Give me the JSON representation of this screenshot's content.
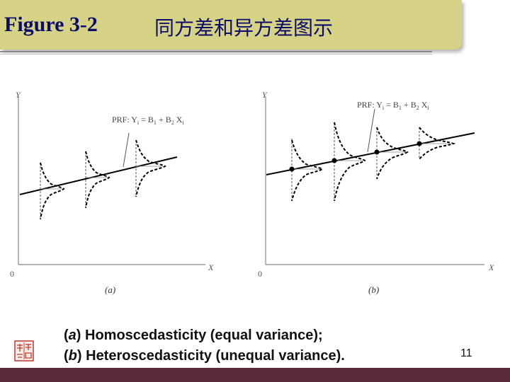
{
  "title": {
    "en": "Figure 3-2",
    "zh": "同方差和异方差图示"
  },
  "figure": {
    "panel_a": {
      "y_axis": "Y",
      "x_axis": "X",
      "origin": "0",
      "label": "(a)",
      "prf": "PRF: Y",
      "prf_sub": "i",
      "prf_eq": " = B",
      "prf_sub2": "1",
      "prf_plus": " + B",
      "prf_sub3": "2",
      "prf_x": " X",
      "prf_sub4": "i"
    },
    "panel_b": {
      "y_axis": "Y",
      "x_axis": "X",
      "origin": "0",
      "label": "(b)",
      "prf": "PRF: Y",
      "prf_sub": "i",
      "prf_eq": " = B",
      "prf_sub2": "1",
      "prf_plus": " + B",
      "prf_sub3": "2",
      "prf_x": " X",
      "prf_sub4": "i"
    }
  },
  "caption": {
    "line1_letter": "a",
    "line1_text": " Homoscedasticity (equal variance);",
    "line2_letter": "b",
    "line2_text": " Heteroscedasticity (unequal variance)."
  },
  "page_number": "11",
  "colors": {
    "title_bg": "#d6d286",
    "title_text": "#0b0b6a",
    "footer": "#5a2a3c"
  }
}
